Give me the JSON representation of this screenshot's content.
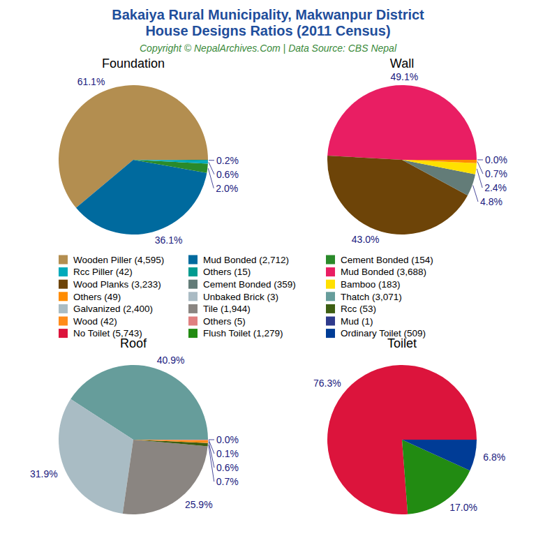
{
  "title": [
    "Bakaiya Rural Municipality, Makwanpur District",
    "House Designs Ratios (2011 Census)"
  ],
  "subtitle": "Copyright © NepalArchives.Com | Data Source: CBS Nepal",
  "chart_data": [
    {
      "type": "pie",
      "title": "Foundation",
      "categories": [
        "Wooden Piller (4,595)",
        "Mud Bonded (2,712)",
        "Cement Bonded (154)",
        "Rcc Piller (42)",
        "Others (15)"
      ],
      "values": [
        61.1,
        36.1,
        2.0,
        0.6,
        0.2
      ],
      "value_labels": [
        "61.1%",
        "36.1%",
        "2.0%",
        "0.6%",
        "0.2%"
      ],
      "colors": [
        "#b38e50",
        "#006a9e",
        "#2a8a2a",
        "#00aabb",
        "#009b8f"
      ],
      "data_labels": true
    },
    {
      "type": "pie",
      "title": "Wall",
      "categories": [
        "Mud Bonded (3,688)",
        "Wood Planks (3,233)",
        "Cement Bonded (359)",
        "Bamboo (183)",
        "Others (49)",
        "Unbaked Brick (3)"
      ],
      "values": [
        49.1,
        43.0,
        4.8,
        2.4,
        0.7,
        0.0
      ],
      "value_labels": [
        "49.1%",
        "43.0%",
        "4.8%",
        "2.4%",
        "0.7%",
        "0.0%"
      ],
      "colors": [
        "#e91e63",
        "#6d4408",
        "#637c78",
        "#ffe000",
        "#ff8c00",
        "#aabbc4"
      ],
      "data_labels": true
    },
    {
      "type": "pie",
      "title": "Roof",
      "categories": [
        "Thatch (3,071)",
        "Galvanized (2,400)",
        "Tile (1,944)",
        "Rcc (53)",
        "Wood (42)",
        "Others (5)",
        "Mud (1)"
      ],
      "values": [
        40.9,
        31.9,
        25.9,
        0.7,
        0.6,
        0.1,
        0.0
      ],
      "value_labels": [
        "40.9%",
        "31.9%",
        "25.9%",
        "0.7%",
        "0.6%",
        "0.1%",
        "0.0%"
      ],
      "colors": [
        "#669d9b",
        "#a9bcc4",
        "#8a8581",
        "#3d5e12",
        "#ff8c1a",
        "#e08080",
        "#2e3a8c"
      ],
      "data_labels": true
    },
    {
      "type": "pie",
      "title": "Toilet",
      "categories": [
        "No Toilet (5,743)",
        "Flush Toilet (1,279)",
        "Ordinary Toilet (509)"
      ],
      "values": [
        76.3,
        17.0,
        6.8
      ],
      "value_labels": [
        "76.3%",
        "17.0%",
        "6.8%"
      ],
      "colors": [
        "#dc143c",
        "#228b12",
        "#003c96"
      ],
      "data_labels": true
    }
  ]
}
